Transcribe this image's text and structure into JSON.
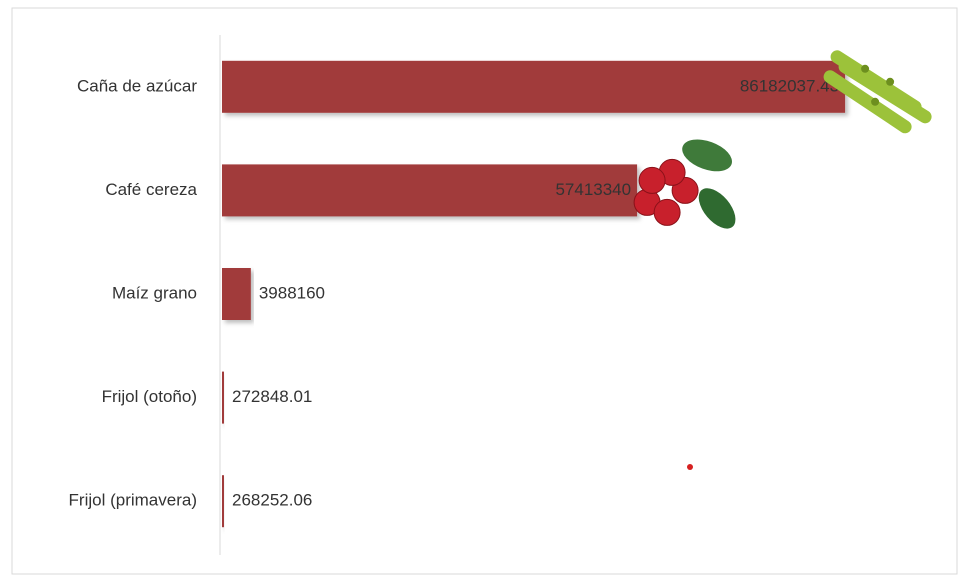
{
  "chart_data": {
    "type": "bar",
    "orientation": "horizontal",
    "categories": [
      "Caña de azúcar",
      "Café cereza",
      "Maíz grano",
      "Frijol (otoño)",
      "Frijol (primavera)"
    ],
    "values": [
      86182037.43,
      57413340,
      3988160,
      272848.01,
      268252.06
    ],
    "color": "#a13b3b",
    "xlim": [
      0,
      100000000
    ]
  }
}
